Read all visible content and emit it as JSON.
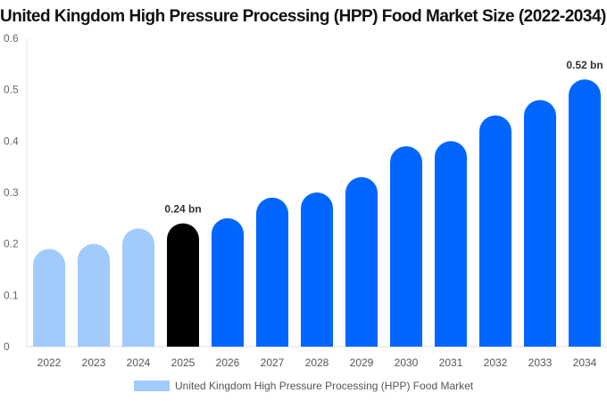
{
  "chart_data": {
    "type": "bar",
    "title": "United Kingdom High Pressure Processing (HPP) Food Market Size (2022-2034)",
    "categories": [
      "2022",
      "2023",
      "2024",
      "2025",
      "2026",
      "2027",
      "2028",
      "2029",
      "2030",
      "2031",
      "2032",
      "2033",
      "2034"
    ],
    "series": [
      {
        "name": "United Kingdom High Pressure Processing (HPP) Food Market",
        "values": [
          0.19,
          0.2,
          0.23,
          0.24,
          0.25,
          0.29,
          0.3,
          0.33,
          0.39,
          0.4,
          0.45,
          0.48,
          0.52
        ]
      }
    ],
    "data_labels": {
      "3": "0.24 bn",
      "12": "0.52 bn"
    },
    "yticks": [
      "0",
      "0.1",
      "0.2",
      "0.3",
      "0.4",
      "0.5",
      "0.6"
    ],
    "ylim": [
      0,
      0.6
    ],
    "grid": false,
    "legend_position": "bottom",
    "colors": {
      "historical": "#a0cbfc",
      "current": "#000000",
      "forecast": "#0066ff"
    }
  }
}
